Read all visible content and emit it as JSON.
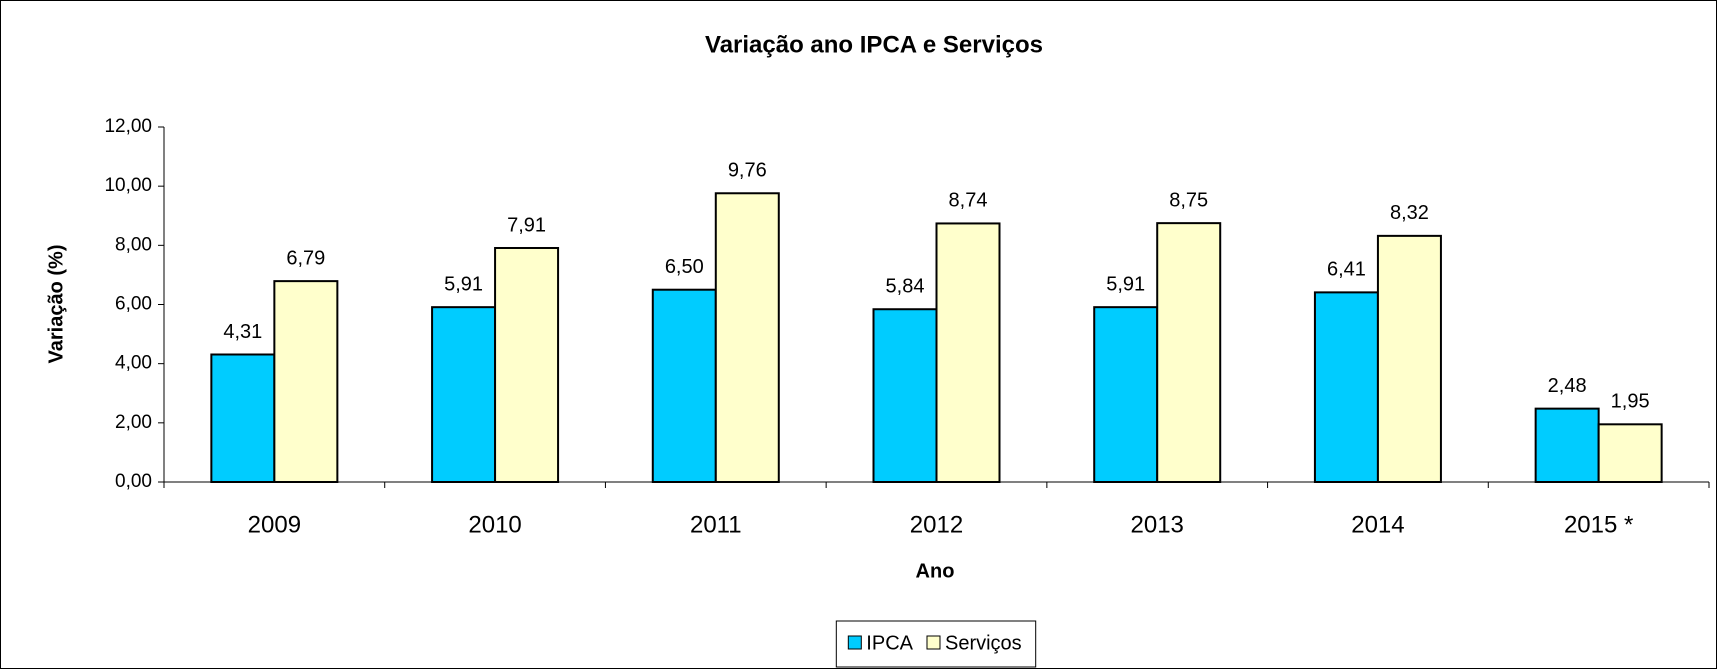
{
  "chart_data": {
    "type": "bar",
    "title": "Variação ano IPCA e Serviços",
    "x_label": "Ano",
    "y_label": "Variação (%)",
    "categories": [
      "2009",
      "2010",
      "2011",
      "2012",
      "2013",
      "2014",
      "2015 *"
    ],
    "series": [
      {
        "name": "IPCA",
        "color": "#00ccff",
        "values": [
          4.31,
          5.91,
          6.5,
          5.84,
          5.91,
          6.41,
          2.48
        ],
        "value_labels": [
          "4,31",
          "5,91",
          "6,50",
          "5,84",
          "5,91",
          "6,41",
          "2,48"
        ]
      },
      {
        "name": "Serviços",
        "color": "#ffffcc",
        "values": [
          6.79,
          7.91,
          9.76,
          8.74,
          8.75,
          8.32,
          1.95
        ],
        "value_labels": [
          "6,79",
          "7,91",
          "9,76",
          "8,74",
          "8,75",
          "8,32",
          "1,95"
        ]
      }
    ],
    "ylim": [
      0,
      12
    ],
    "yticks": [
      {
        "value": 0,
        "label": "0,00"
      },
      {
        "value": 2,
        "label": "2,00"
      },
      {
        "value": 4,
        "label": "4,00"
      },
      {
        "value": 6,
        "label": "6,00"
      },
      {
        "value": 8,
        "label": "8,00"
      },
      {
        "value": 10,
        "label": "10,00"
      },
      {
        "value": 12,
        "label": "12,00"
      }
    ],
    "grid": false,
    "legend": "bottom"
  }
}
